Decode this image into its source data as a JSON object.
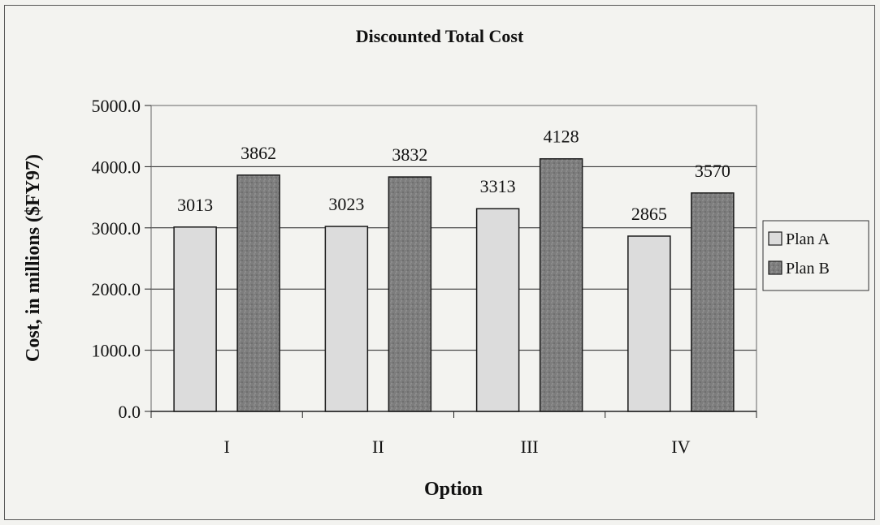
{
  "chart_data": {
    "type": "bar",
    "title": "Discounted Total Cost",
    "xlabel": "Option",
    "ylabel": "Cost, in millions ($FY97)",
    "categories": [
      "I",
      "II",
      "III",
      "IV"
    ],
    "series": [
      {
        "name": "Plan A",
        "values": [
          3013,
          3023,
          3313,
          2865
        ],
        "color": "#dcdcdc"
      },
      {
        "name": "Plan B",
        "values": [
          3862,
          3832,
          4128,
          3570
        ],
        "color": "#808080"
      }
    ],
    "ylim": [
      0,
      5000
    ],
    "yticks": [
      "0.0",
      "1000.0",
      "2000.0",
      "3000.0",
      "4000.0",
      "5000.0"
    ],
    "grid": true,
    "legend_position": "right"
  }
}
